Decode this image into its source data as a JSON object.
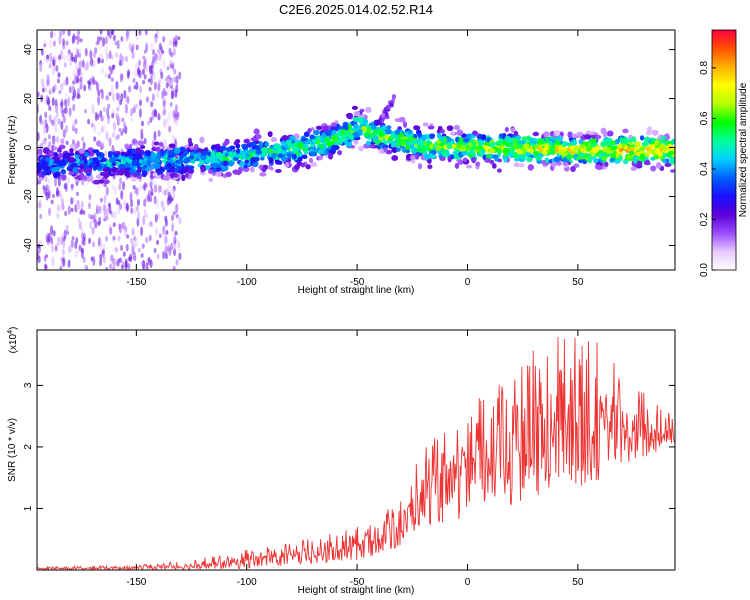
{
  "title": "C2E6.2025.014.02.52.R14",
  "chart_data": [
    {
      "type": "heatmap",
      "xlabel": "Height of straight line (km)",
      "ylabel": "Frequency (Hz)",
      "xlim": [
        -195,
        94
      ],
      "ylim": [
        -50,
        48
      ],
      "x_ticks": [
        -150,
        -100,
        -50,
        0,
        50
      ],
      "y_ticks": [
        -40,
        -20,
        0,
        20,
        40
      ],
      "colorbar": {
        "label": "Normalized spectral amplitude",
        "range": [
          0,
          0.95
        ],
        "ticks": [
          0.0,
          0.2,
          0.4,
          0.6,
          0.8
        ],
        "tick_labels": [
          "0.0",
          "0.2",
          "0.4",
          "0.6",
          "0.8"
        ],
        "colormap": [
          "#ffffff",
          "#e6c8ff",
          "#9a4cff",
          "#5a00d8",
          "#1a10ff",
          "#0060ff",
          "#00d0ff",
          "#00ff9a",
          "#00ff00",
          "#b8ff00",
          "#ffff00",
          "#ffb000",
          "#ff5000",
          "#ff0040"
        ]
      },
      "ridge": {
        "x": [
          -195,
          -150,
          -120,
          -100,
          -80,
          -60,
          -50,
          -40,
          -30,
          -20,
          0,
          20,
          40,
          60,
          80,
          94
        ],
        "frequency_hz": [
          -7,
          -6,
          -5,
          -3,
          -1,
          3,
          8,
          5,
          3,
          1,
          0,
          0,
          -1,
          -1,
          -1,
          -1
        ]
      },
      "extra_feature": {
        "x": [
          -40,
          -33
        ],
        "frequency_hz": [
          10,
          20
        ]
      },
      "grid": false
    },
    {
      "type": "line",
      "xlabel": "Height of straight line (km)",
      "ylabel": "SNR (10 * v/v)",
      "y_multiplier_label": "(x10",
      "y_multiplier_exponent": "4",
      "xlim": [
        -195,
        94
      ],
      "ylim": [
        0,
        3.9
      ],
      "x_ticks": [
        -150,
        -100,
        -50,
        0,
        50
      ],
      "y_ticks": [
        1,
        2,
        3
      ],
      "line_color": "#ee3333",
      "envelope": {
        "x": [
          -195,
          -150,
          -130,
          -110,
          -100,
          -80,
          -60,
          -50,
          -40,
          -30,
          -25,
          -20,
          -10,
          0,
          10,
          20,
          30,
          40,
          50,
          60,
          70,
          80,
          94
        ],
        "mean": [
          0.02,
          0.03,
          0.05,
          0.08,
          0.12,
          0.18,
          0.25,
          0.3,
          0.45,
          0.6,
          0.9,
          1.1,
          1.2,
          1.35,
          1.6,
          1.7,
          1.85,
          1.95,
          2.05,
          2.1,
          2.15,
          2.1,
          2.2
        ],
        "peak": [
          0.05,
          0.08,
          0.15,
          0.25,
          0.35,
          0.45,
          0.6,
          0.7,
          0.9,
          1.2,
          1.7,
          2.0,
          2.3,
          2.6,
          3.0,
          3.3,
          3.6,
          3.8,
          3.8,
          3.7,
          3.2,
          2.9,
          2.5
        ]
      },
      "grid": false
    }
  ]
}
